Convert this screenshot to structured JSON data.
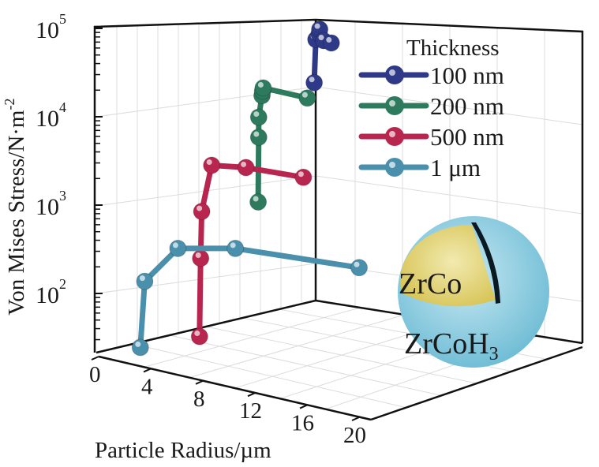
{
  "chart_data": {
    "type": "line",
    "subtype": "3d-line-markers",
    "title": "",
    "xlabel": "Particle Radius/µm",
    "ylabel": "Von Mises Stress/N·m",
    "ylabel_sup": "-2",
    "zlabel": "Thickness",
    "yscale": "log",
    "ylim": [
      20,
      100000
    ],
    "xlim": [
      0,
      20
    ],
    "x_ticks": [
      "0",
      "4",
      "8",
      "12",
      "16",
      "20"
    ],
    "y_ticks": [
      {
        "base": "10",
        "exp": "2"
      },
      {
        "base": "10",
        "exp": "3"
      },
      {
        "base": "10",
        "exp": "4"
      },
      {
        "base": "10",
        "exp": "5"
      }
    ],
    "grid": true,
    "legend_title": "Thickness",
    "legend_position": "top-right",
    "series": [
      {
        "name": "100 nm",
        "color": "#2e3a87",
        "radius": [
          0.15,
          0.3,
          0.6,
          0.65,
          1.0,
          1.7
        ],
        "stress": [
          22400,
          69000,
          80000,
          90000,
          67000,
          63000
        ]
      },
      {
        "name": "200 nm",
        "color": "#2e7a5e",
        "radius": [
          0.15,
          0.2,
          0.2,
          0.5,
          0.55,
          0.6,
          4.6
        ],
        "stress": [
          1000,
          5400,
          9100,
          16000,
          18000,
          19500,
          15000
        ]
      },
      {
        "name": "500 nm",
        "color": "#b8264f",
        "radius": [
          0.2,
          0.3,
          0.4,
          1.3,
          4.4,
          9.6
        ],
        "stress": [
          30,
          230,
          780,
          2600,
          2450,
          1900
        ]
      },
      {
        "name": "1 μm",
        "color": "#4a8fab",
        "radius": [
          0.2,
          0.6,
          3.6,
          8.8,
          20
        ],
        "stress": [
          25,
          140,
          330,
          330,
          200
        ]
      }
    ],
    "inset": {
      "core_label": "ZrCo",
      "shell_label": "ZrCoH",
      "shell_sub": "3"
    }
  }
}
